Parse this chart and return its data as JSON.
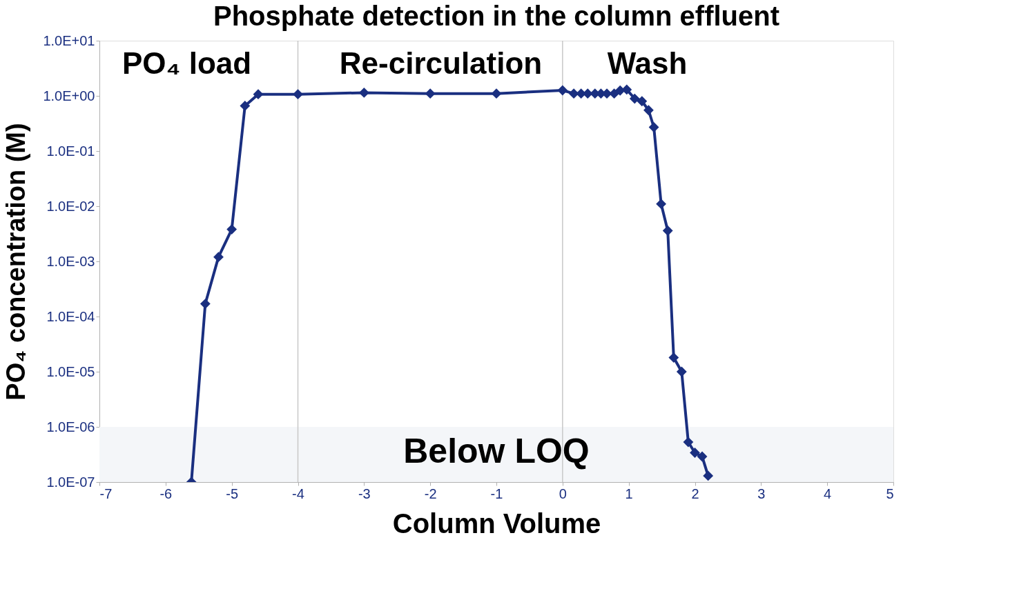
{
  "chart_data": {
    "type": "line",
    "title": "Phosphate detection in the column effluent",
    "xlabel": "Column Volume",
    "ylabel": "PO₄ concentration (M)",
    "x": [
      -5.61,
      -5.4,
      -5.2,
      -5.0,
      -4.8,
      -4.6,
      -4.0,
      -3.0,
      -2.0,
      -1.0,
      0.0,
      0.17,
      0.28,
      0.38,
      0.49,
      0.58,
      0.67,
      0.78,
      0.87,
      0.97,
      1.09,
      1.2,
      1.3,
      1.38,
      1.49,
      1.59,
      1.68,
      1.8,
      1.9,
      2.0,
      2.11,
      2.2
    ],
    "series": [
      {
        "color": "#1a2f80",
        "values": [
          1e-07,
          0.00017,
          0.0012,
          0.0038,
          0.66,
          1.07,
          1.07,
          1.14,
          1.1,
          1.1,
          1.26,
          1.1,
          1.1,
          1.1,
          1.1,
          1.1,
          1.1,
          1.1,
          1.25,
          1.3,
          0.89,
          0.8,
          0.55,
          0.27,
          0.011,
          0.0036,
          1.8e-05,
          1e-05,
          5.3e-07,
          3.4e-07,
          2.9e-07,
          1.3e-07
        ]
      }
    ],
    "marker": "diamond",
    "line_style": "solid",
    "log": "y",
    "grid": false,
    "legend": false,
    "xlim": [
      -7,
      5
    ],
    "xticks": [
      -7,
      -6,
      -5,
      -4,
      -3,
      -2,
      -1,
      0,
      1,
      2,
      3,
      4,
      5
    ],
    "ylim": [
      1e-07,
      10
    ],
    "yticks": [
      {
        "value": 1e-07,
        "label": "1.0E-07"
      },
      {
        "value": 1e-06,
        "label": "1.0E-06"
      },
      {
        "value": 1e-05,
        "label": "1.0E-05"
      },
      {
        "value": 0.0001,
        "label": "1.0E-04"
      },
      {
        "value": 0.001,
        "label": "1.0E-03"
      },
      {
        "value": 0.01,
        "label": "1.0E-02"
      },
      {
        "value": 0.1,
        "label": "1.0E-01"
      },
      {
        "value": 1,
        "label": "1.0E+00"
      },
      {
        "value": 10,
        "label": "1.0E+01"
      }
    ],
    "ref_lines": [
      {
        "axis": "x",
        "value": -4,
        "color": "#c8c8c8"
      },
      {
        "axis": "x",
        "value": 0,
        "color": "#c8c8c8"
      }
    ],
    "bands": [
      {
        "axis": "y",
        "from": 1e-07,
        "to": 1e-06,
        "label": "Below LOQ",
        "color": "#f4f6f9"
      }
    ],
    "annotations": [
      "PO₄ load",
      "Re-circulation",
      "Wash"
    ]
  }
}
